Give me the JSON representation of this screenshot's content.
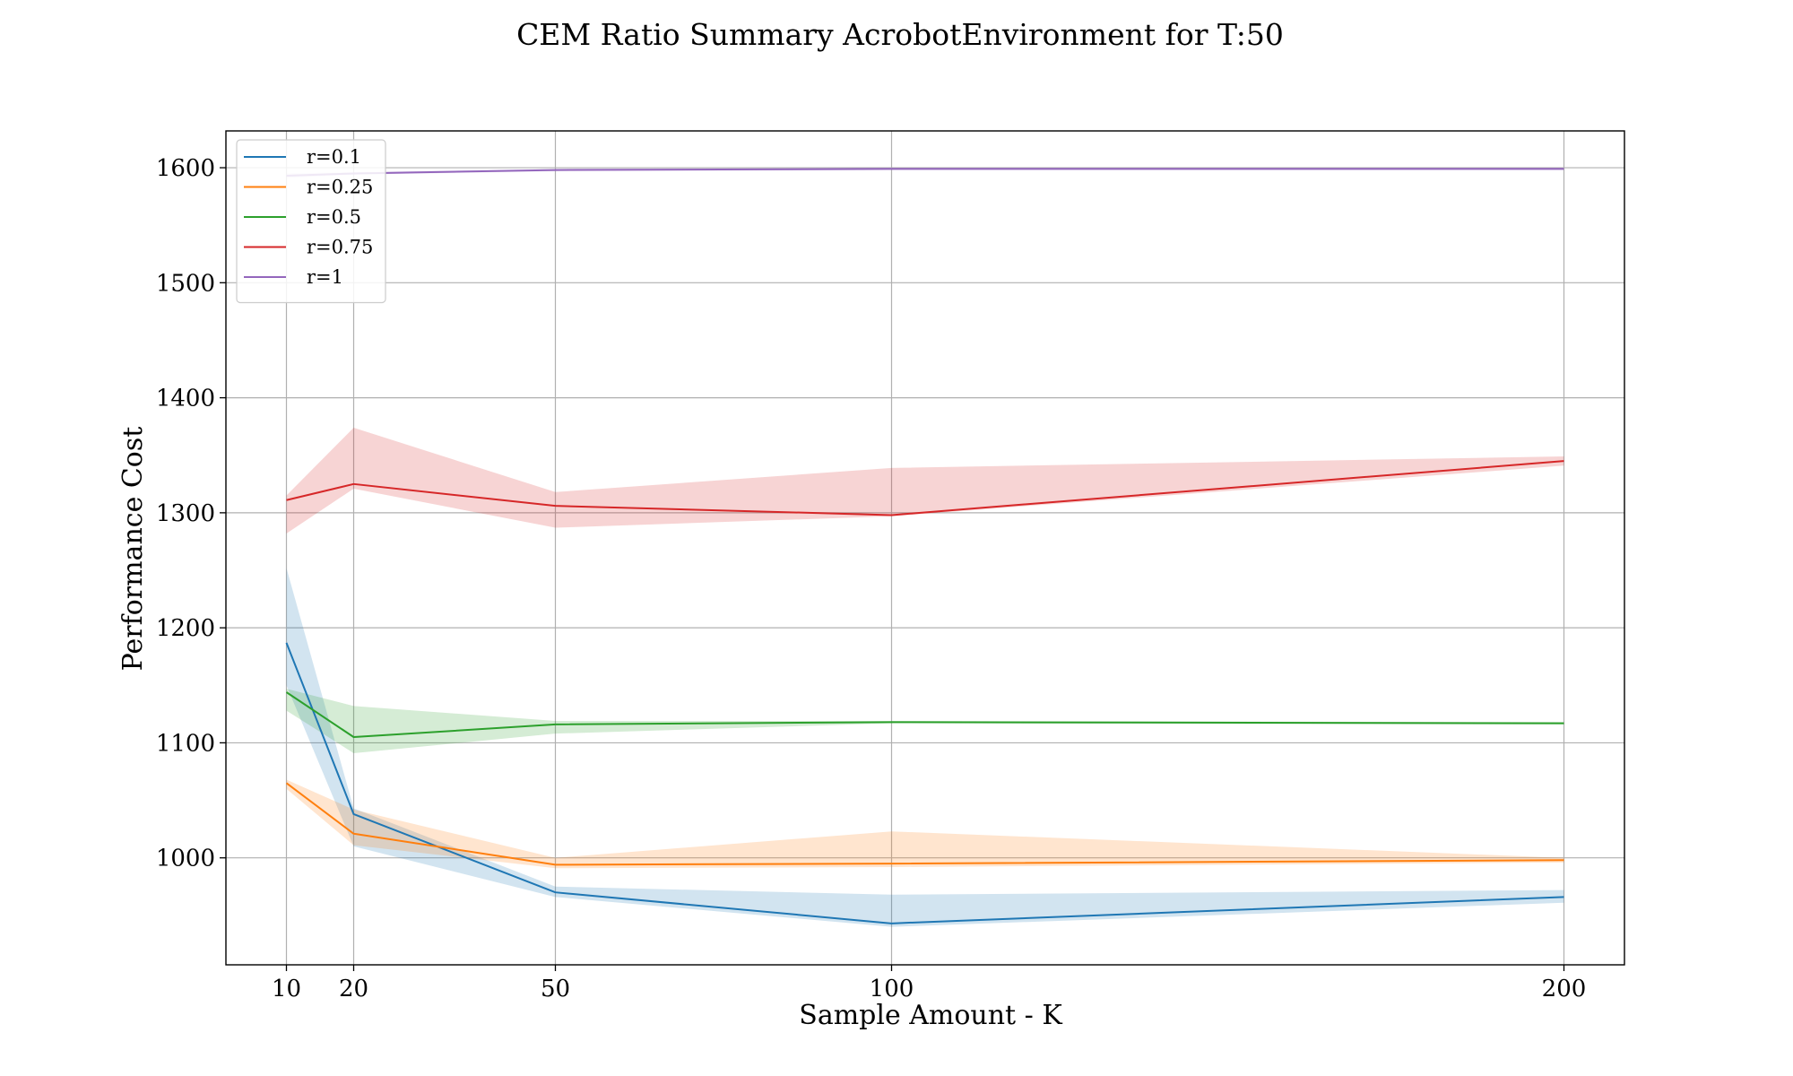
{
  "chart_data": {
    "type": "line",
    "title": "CEM Ratio Summary AcrobotEnvironment for T:50",
    "xlabel": "Sample Amount - K",
    "ylabel": "Performance Cost",
    "x": [
      10,
      20,
      50,
      100,
      200
    ],
    "x_tick_labels": [
      "10",
      "20",
      "50",
      "100",
      "200"
    ],
    "y_ticks": [
      1000,
      1100,
      1200,
      1300,
      1400,
      1500,
      1600
    ],
    "y_tick_labels": [
      "1000",
      "1100",
      "1200",
      "1300",
      "1400",
      "1500",
      "1600"
    ],
    "xlim": [
      1,
      209
    ],
    "ylim": [
      907,
      1632
    ],
    "grid": true,
    "legend_position": "top-left",
    "series": [
      {
        "name": "r=0.1",
        "color": "#1f77b4",
        "values": [
          1187,
          1038,
          970,
          943,
          966
        ],
        "band_upper": [
          1252,
          1043,
          975,
          968,
          972
        ],
        "band_lower": [
          1150,
          1010,
          966,
          940,
          961
        ]
      },
      {
        "name": "r=0.25",
        "color": "#ff7f0e",
        "values": [
          1065,
          1021,
          994,
          995,
          998
        ],
        "band_upper": [
          1068,
          1042,
          1000,
          1023,
          1000
        ],
        "band_lower": [
          1060,
          1011,
          991,
          992,
          996
        ]
      },
      {
        "name": "r=0.5",
        "color": "#2ca02c",
        "values": [
          1144,
          1105,
          1116,
          1118,
          1117
        ],
        "band_upper": [
          1147,
          1132,
          1119,
          1119,
          1118
        ],
        "band_lower": [
          1128,
          1091,
          1108,
          1117,
          1116
        ]
      },
      {
        "name": "r=0.75",
        "color": "#d62728",
        "values": [
          1311,
          1325,
          1306,
          1298,
          1345
        ],
        "band_upper": [
          1315,
          1374,
          1318,
          1339,
          1349
        ],
        "band_lower": [
          1282,
          1321,
          1287,
          1297,
          1341
        ]
      },
      {
        "name": "r=1",
        "color": "#9467bd",
        "values": [
          1593,
          1595,
          1598,
          1599,
          1599
        ],
        "band_upper": [
          1595,
          1596,
          1599,
          1600,
          1600
        ],
        "band_lower": [
          1591,
          1594,
          1597,
          1598,
          1598
        ]
      }
    ]
  }
}
